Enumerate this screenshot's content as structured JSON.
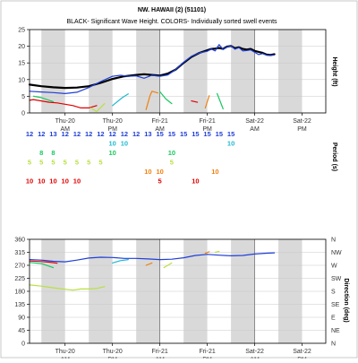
{
  "title": "NW. HAWAII (2) (51101)",
  "colors": {
    "black": "#000000",
    "blue": "#1f3fd8",
    "red": "#e00000",
    "orange": "#f08010",
    "cyan": "#20b8d0",
    "green": "#18c860",
    "lime": "#b8e040",
    "shade": "#d9d9d9"
  },
  "time_axis": {
    "labels": [
      {
        "day": "Thu-20",
        "half": "AM",
        "t": 24
      },
      {
        "day": "Thu-20",
        "half": "PM",
        "t": 36
      },
      {
        "day": "Fri-21",
        "half": "AM",
        "t": 48
      },
      {
        "day": "Fri-21",
        "half": "PM",
        "t": 60
      },
      {
        "day": "Sat-22",
        "half": "AM",
        "t": 72
      },
      {
        "day": "Sat-22",
        "half": "PM",
        "t": 84
      }
    ],
    "shaded": [
      [
        18,
        24
      ],
      [
        30,
        36
      ],
      [
        42,
        48
      ],
      [
        54,
        60
      ],
      [
        66,
        72
      ],
      [
        78,
        84
      ]
    ],
    "day_lines": [
      48,
      72
    ],
    "tmin": 15,
    "tmax": 90
  },
  "chart_data": [
    {
      "type": "line",
      "title": "BLACK- Significant Wave Height.  COLORS- Individually sorted swell events",
      "ylabel": "Height (ft)",
      "ylim": [
        0,
        25
      ],
      "yticks": [
        0,
        5,
        10,
        15,
        20,
        25
      ],
      "series": [
        {
          "color": "black",
          "x": [
            15,
            18,
            21,
            24,
            27,
            30,
            33,
            36,
            39,
            42,
            44,
            46,
            48,
            50,
            52,
            54,
            56,
            58,
            60,
            61,
            62,
            63,
            64,
            65,
            66,
            67,
            68,
            69,
            70,
            71,
            72,
            73,
            74,
            75,
            76,
            77
          ],
          "y": [
            8.5,
            8.0,
            7.7,
            7.5,
            7.6,
            8.0,
            9.0,
            10.2,
            11.0,
            11.4,
            11.6,
            11.4,
            11.2,
            11.8,
            13.0,
            15.0,
            16.8,
            18.0,
            18.8,
            19.2,
            19.3,
            19.5,
            19.2,
            19.9,
            20.1,
            19.4,
            19.7,
            19.2,
            19.0,
            19.2,
            18.6,
            18.3,
            18.0,
            17.5,
            17.4,
            17.6
          ]
        },
        {
          "color": "blue",
          "x": [
            15,
            18,
            21,
            24,
            27,
            30,
            33,
            36,
            38,
            40,
            42,
            44,
            46,
            48,
            50,
            52,
            54,
            56,
            58,
            60,
            61,
            62,
            63,
            64,
            65,
            66,
            67,
            68,
            69,
            70,
            71,
            72,
            73,
            74,
            75,
            76,
            77
          ],
          "y": [
            6.5,
            6.3,
            6.1,
            5.8,
            6.2,
            7.6,
            9.4,
            11.0,
            11.3,
            11.0,
            11.1,
            10.4,
            11.3,
            11.0,
            11.4,
            13.0,
            15.2,
            17.0,
            18.0,
            18.5,
            19.2,
            18.6,
            20.5,
            19.0,
            19.8,
            20.2,
            19.1,
            19.6,
            18.6,
            18.7,
            18.9,
            18.2,
            17.5,
            17.8,
            17.3,
            17.2,
            17.4
          ]
        },
        {
          "color": "red",
          "x": [
            15,
            16,
            18,
            20,
            22,
            24,
            26,
            28,
            30,
            32
          ],
          "y": [
            3.8,
            4.0,
            3.6,
            3.2,
            3.0,
            2.6,
            2.2,
            1.5,
            1.5,
            2.2
          ]
        },
        {
          "color": "red",
          "x": [
            56,
            57.5
          ],
          "y": [
            3.6,
            3.2
          ]
        },
        {
          "color": "orange",
          "x": [
            44.5,
            45.5,
            46,
            47.5
          ],
          "y": [
            1.0,
            5.2,
            6.5,
            6.0
          ]
        },
        {
          "color": "orange",
          "x": [
            59.5,
            60.5
          ],
          "y": [
            1.5,
            5.2
          ]
        },
        {
          "color": "green",
          "x": [
            16,
            18,
            21
          ],
          "y": [
            5.0,
            4.6,
            3.4
          ]
        },
        {
          "color": "green",
          "x": [
            48,
            49.5,
            51
          ],
          "y": [
            6.4,
            4.2,
            2.8
          ]
        },
        {
          "color": "green",
          "x": [
            62.5,
            64
          ],
          "y": [
            5.8,
            1.2
          ]
        },
        {
          "color": "cyan",
          "x": [
            36,
            38.5,
            40
          ],
          "y": [
            2.2,
            4.6,
            5.7
          ]
        },
        {
          "color": "lime",
          "x": [
            30.5,
            32,
            34
          ],
          "y": [
            1.5,
            0.4,
            2.8
          ]
        }
      ],
      "period_label": "Period (s)",
      "period_rows": [
        {
          "color": "blue",
          "t": [
            15,
            18,
            21,
            24,
            27,
            30,
            33,
            36,
            39,
            42,
            45,
            48,
            51,
            54,
            57,
            60,
            63,
            66
          ],
          "v": [
            "12",
            "12",
            "13",
            "12",
            "12",
            "12",
            "12",
            "12",
            "12",
            "12",
            "13",
            "15",
            "15",
            "15",
            "15",
            "15",
            "15",
            "15"
          ]
        },
        {
          "color": "cyan",
          "t": [
            36,
            39,
            66
          ],
          "v": [
            "10",
            "10",
            "10"
          ]
        },
        {
          "color": "green",
          "t": [
            18,
            21,
            36,
            51
          ],
          "v": [
            "8",
            "8",
            "10",
            "10"
          ]
        },
        {
          "color": "lime",
          "t": [
            15,
            18,
            21,
            24,
            27,
            30,
            33,
            51
          ],
          "v": [
            "5",
            "5",
            "5",
            "5",
            "5",
            "5",
            "5",
            "5"
          ]
        },
        {
          "color": "orange",
          "t": [
            45,
            48,
            62
          ],
          "v": [
            "10",
            "10",
            "10"
          ]
        },
        {
          "color": "red",
          "t": [
            15,
            18,
            21,
            24,
            27,
            48,
            57
          ],
          "v": [
            "10",
            "10",
            "10",
            "10",
            "10",
            "5",
            "10"
          ]
        }
      ]
    },
    {
      "type": "line",
      "ylabel": "Direction (deg)",
      "ylim": [
        0,
        360
      ],
      "yticks": [
        0,
        45,
        90,
        135,
        180,
        225,
        270,
        315,
        360
      ],
      "compass": [
        "N",
        "NE",
        "E",
        "SE",
        "S",
        "SW",
        "W",
        "NW",
        "N"
      ],
      "series": [
        {
          "color": "blue",
          "x": [
            15,
            18,
            21,
            24,
            27,
            30,
            33,
            36,
            39,
            42,
            45,
            48,
            51,
            54,
            57,
            60,
            63,
            66,
            69,
            72,
            75,
            77
          ],
          "y": [
            290,
            288,
            284,
            282,
            288,
            295,
            298,
            297,
            294,
            294,
            292,
            290,
            291,
            296,
            304,
            308,
            305,
            303,
            304,
            309,
            312,
            313
          ]
        },
        {
          "color": "red",
          "x": [
            15,
            18,
            20,
            22
          ],
          "y": [
            285,
            283,
            281,
            277
          ]
        },
        {
          "color": "green",
          "x": [
            15,
            18,
            21
          ],
          "y": [
            280,
            276,
            262
          ]
        },
        {
          "color": "orange",
          "x": [
            44.5,
            46
          ],
          "y": [
            270,
            278
          ]
        },
        {
          "color": "orange",
          "x": [
            59.5,
            60.5
          ],
          "y": [
            312,
            317
          ]
        },
        {
          "color": "cyan",
          "x": [
            36,
            38,
            40
          ],
          "y": [
            278,
            286,
            290
          ]
        },
        {
          "color": "lime",
          "x": [
            15,
            18,
            21,
            24,
            26,
            28,
            30,
            32,
            34
          ],
          "y": [
            202,
            198,
            192,
            187,
            184,
            188,
            188,
            190,
            196
          ]
        },
        {
          "color": "lime",
          "x": [
            49,
            51
          ],
          "y": [
            262,
            278
          ]
        },
        {
          "color": "lime",
          "x": [
            62,
            63
          ],
          "y": [
            315,
            318
          ]
        }
      ]
    }
  ]
}
